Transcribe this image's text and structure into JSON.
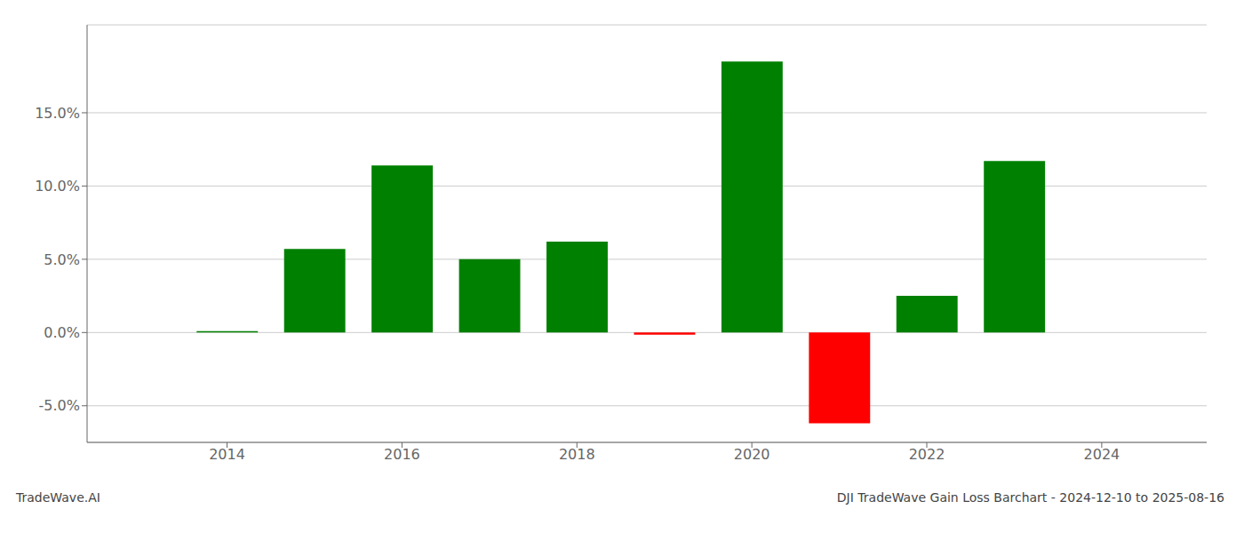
{
  "chart_data": {
    "type": "bar",
    "x": [
      2014,
      2015,
      2016,
      2017,
      2018,
      2019,
      2020,
      2021,
      2022,
      2023
    ],
    "values": [
      0.1,
      5.7,
      11.4,
      5.0,
      6.2,
      -0.15,
      18.5,
      -6.2,
      2.5,
      11.7
    ],
    "colors": [
      "#008000",
      "#008000",
      "#008000",
      "#008000",
      "#008000",
      "#ff0000",
      "#008000",
      "#ff0000",
      "#008000",
      "#008000"
    ],
    "xlim": [
      2012.4,
      2025.2
    ],
    "xticks": [
      2014,
      2016,
      2018,
      2020,
      2022,
      2024
    ],
    "ylim": [
      -7.5,
      21.0
    ],
    "yticks": [
      {
        "value": -5.0,
        "label": "-5.0%"
      },
      {
        "value": 0.0,
        "label": "0.0%"
      },
      {
        "value": 5.0,
        "label": "5.0%"
      },
      {
        "value": 10.0,
        "label": "10.0%"
      },
      {
        "value": 15.0,
        "label": "15.0%"
      }
    ],
    "grid": true,
    "annotations": [
      "TradeWave.AI",
      "DJI TradeWave Gain Loss Barchart - 2024-12-10 to 2025-08-16"
    ]
  }
}
